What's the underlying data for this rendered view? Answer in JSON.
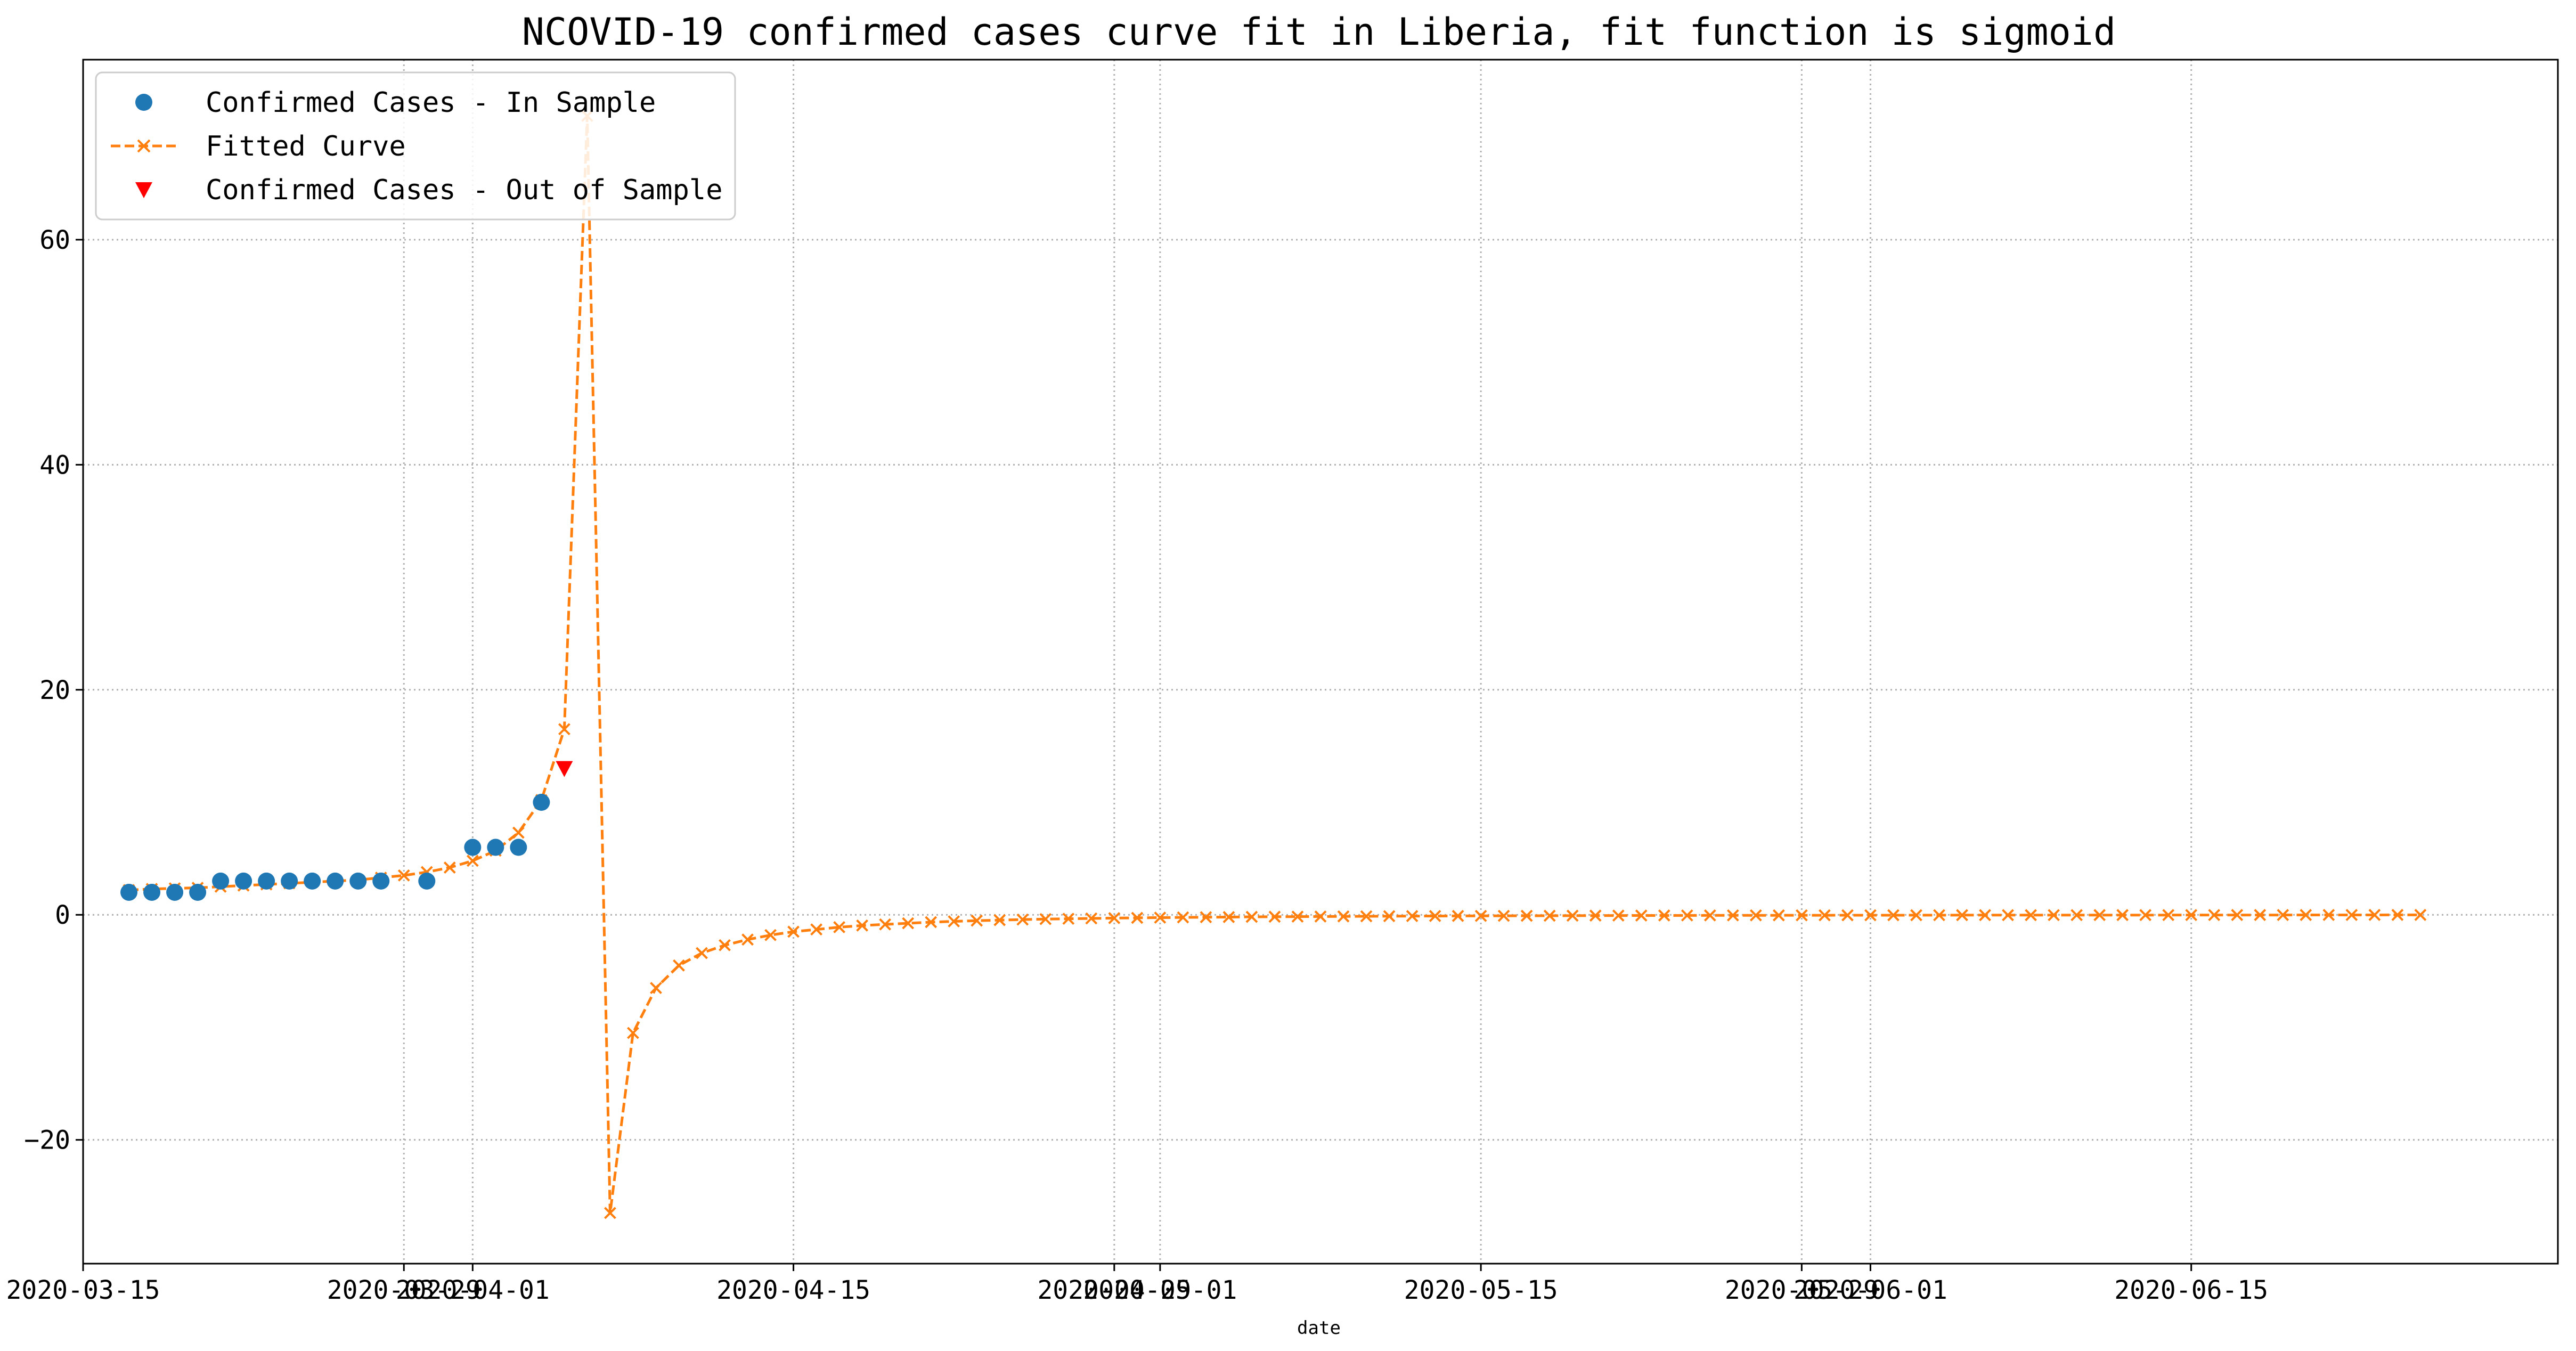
{
  "chart_data": {
    "type": "line",
    "title": "NCOVID-19 confirmed cases curve fit in Liberia, fit function is sigmoid",
    "xlabel": "date",
    "ylabel": "",
    "x_axis_type": "date",
    "xlim": [
      "2020-03-15",
      "2020-07-01"
    ],
    "ylim": [
      -31,
      76
    ],
    "y_ticks": [
      -20,
      0,
      20,
      40,
      60
    ],
    "x_ticks": [
      "2020-03-15",
      "2020-03-29",
      "2020-04-01",
      "2020-04-15",
      "2020-04-29",
      "2020-05-01",
      "2020-05-15",
      "2020-05-29",
      "2020-06-01",
      "2020-06-15"
    ],
    "x_tick_labels": [
      "2020-03-15",
      "2020-03-29",
      "2020-04-01",
      "2020-04-15",
      "2020-04-29",
      "2020-05-01",
      "2020-05-15",
      "2020-05-29",
      "2020-06-01",
      "2020-06-15"
    ],
    "grid": true,
    "legend_position": "upper-left",
    "series": [
      {
        "name": "Confirmed Cases - In Sample",
        "style": "scatter",
        "marker": "circle",
        "color": "#1f77b4",
        "points": [
          [
            "2020-03-17",
            2
          ],
          [
            "2020-03-18",
            2
          ],
          [
            "2020-03-19",
            2
          ],
          [
            "2020-03-20",
            2
          ],
          [
            "2020-03-21",
            3
          ],
          [
            "2020-03-22",
            3
          ],
          [
            "2020-03-23",
            3
          ],
          [
            "2020-03-24",
            3
          ],
          [
            "2020-03-25",
            3
          ],
          [
            "2020-03-26",
            3
          ],
          [
            "2020-03-27",
            3
          ],
          [
            "2020-03-28",
            3
          ],
          [
            "2020-03-30",
            3
          ],
          [
            "2020-04-01",
            6
          ],
          [
            "2020-04-02",
            6
          ],
          [
            "2020-04-03",
            6
          ],
          [
            "2020-04-04",
            10
          ]
        ]
      },
      {
        "name": "Fitted Curve",
        "style": "line",
        "marker": "x",
        "linestyle": "dashed",
        "color": "#ff7f0e",
        "start_date": "2020-03-17",
        "values": [
          2.2,
          2.3,
          2.35,
          2.4,
          2.5,
          2.6,
          2.7,
          2.8,
          2.9,
          3.0,
          3.1,
          3.3,
          3.5,
          3.8,
          4.2,
          4.8,
          5.7,
          7.3,
          10.2,
          16.5,
          71.0,
          -26.5,
          -10.5,
          -6.5,
          -4.5,
          -3.4,
          -2.7,
          -2.2,
          -1.8,
          -1.5,
          -1.3,
          -1.1,
          -0.95,
          -0.85,
          -0.75,
          -0.65,
          -0.58,
          -0.52,
          -0.47,
          -0.42,
          -0.38,
          -0.35,
          -0.32,
          -0.29,
          -0.27,
          -0.25,
          -0.23,
          -0.21,
          -0.2,
          -0.18,
          -0.17,
          -0.16,
          -0.15,
          -0.14,
          -0.13,
          -0.12,
          -0.11,
          -0.105,
          -0.1,
          -0.095,
          -0.09,
          -0.085,
          -0.08,
          -0.075,
          -0.07,
          -0.066,
          -0.062,
          -0.058,
          -0.055,
          -0.052,
          -0.049,
          -0.046,
          -0.044,
          -0.042,
          -0.04,
          -0.038,
          -0.036,
          -0.034,
          -0.032,
          -0.03,
          -0.029,
          -0.028,
          -0.027,
          -0.026,
          -0.025,
          -0.024,
          -0.023,
          -0.022,
          -0.021,
          -0.02,
          -0.019,
          -0.018,
          -0.017,
          -0.016,
          -0.015,
          -0.014,
          -0.013,
          -0.012,
          -0.011,
          -0.01,
          -0.01
        ]
      },
      {
        "name": "Confirmed Cases - Out of Sample",
        "style": "scatter",
        "marker": "triangle-down",
        "color": "#ff0000",
        "points": [
          [
            "2020-04-05",
            13
          ]
        ]
      }
    ]
  }
}
